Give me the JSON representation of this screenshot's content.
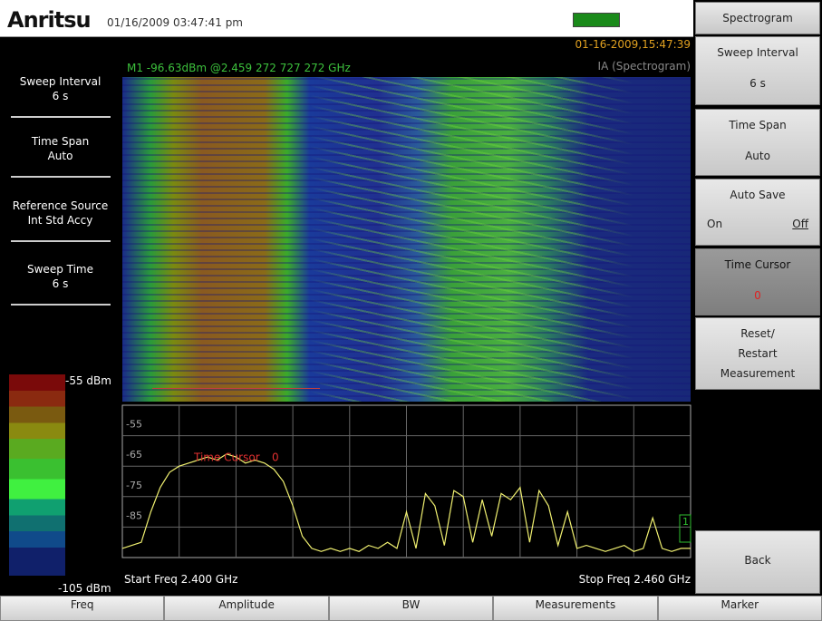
{
  "header": {
    "brand": "Anritsu",
    "datetime": "01/16/2009 03:47:41 pm"
  },
  "left_panel": [
    {
      "label": "Sweep Interval",
      "value": "6 s"
    },
    {
      "label": "Time Span",
      "value": "Auto"
    },
    {
      "label": "Reference Source",
      "value": "Int Std Accy"
    },
    {
      "label": "Sweep Time",
      "value": "6 s"
    }
  ],
  "display": {
    "timestamp": "01-16-2009,15:47:39",
    "mode": "IA (Spectrogram)",
    "marker": "M1 -96.63dBm @2.459 272 727 272 GHz",
    "time_cursor": "Time Cursor",
    "time_cursor_value": "0",
    "marker_flag": "1",
    "start": "Start Freq 2.400 GHz",
    "stop": "Stop Freq 2.460 GHz",
    "back_hint": "<--"
  },
  "color_scale": {
    "top": "-55 dBm",
    "bottom": "-105 dBm"
  },
  "trace": {
    "xlim": [
      2.4,
      2.46
    ],
    "ylim": [
      -95,
      -45
    ],
    "yticks": [
      -55,
      -65,
      -75,
      -85
    ],
    "x": [
      2.4,
      2.401,
      2.402,
      2.403,
      2.404,
      2.405,
      2.406,
      2.407,
      2.408,
      2.409,
      2.41,
      2.411,
      2.412,
      2.413,
      2.414,
      2.415,
      2.416,
      2.417,
      2.418,
      2.419,
      2.42,
      2.421,
      2.422,
      2.423,
      2.424,
      2.425,
      2.426,
      2.427,
      2.428,
      2.429,
      2.43,
      2.431,
      2.432,
      2.433,
      2.434,
      2.435,
      2.436,
      2.437,
      2.438,
      2.439,
      2.44,
      2.441,
      2.442,
      2.443,
      2.444,
      2.445,
      2.446,
      2.447,
      2.448,
      2.449,
      2.45,
      2.451,
      2.452,
      2.453,
      2.454,
      2.455,
      2.456,
      2.457,
      2.458,
      2.459,
      2.46
    ],
    "values": [
      -92,
      -91,
      -90,
      -80,
      -72,
      -67,
      -65,
      -64,
      -63,
      -62,
      -63,
      -61,
      -62,
      -64,
      -63,
      -64,
      -66,
      -70,
      -78,
      -88,
      -92,
      -93,
      -92,
      -93,
      -92,
      -93,
      -91,
      -92,
      -90,
      -92,
      -80,
      -92,
      -74,
      -78,
      -91,
      -73,
      -75,
      -90,
      -76,
      -88,
      -74,
      -76,
      -72,
      -90,
      -73,
      -78,
      -91,
      -80,
      -92,
      -91,
      -92,
      -93,
      -92,
      -91,
      -93,
      -92,
      -82,
      -92,
      -93,
      -92,
      -92
    ]
  },
  "softkeys": {
    "title": "Spectrogram",
    "buttons": [
      {
        "label": "Sweep Interval",
        "value": "6 s"
      },
      {
        "label": "Time Span",
        "value": "Auto"
      },
      {
        "label": "Auto Save",
        "options": [
          "On",
          "Off"
        ]
      },
      {
        "label": "Time Cursor",
        "value": "0"
      },
      {
        "lines": [
          "Reset/",
          "Restart",
          "Measurement"
        ]
      }
    ],
    "back": "Back"
  },
  "menu": [
    "Freq",
    "Amplitude",
    "BW",
    "Measurements",
    "Marker"
  ]
}
